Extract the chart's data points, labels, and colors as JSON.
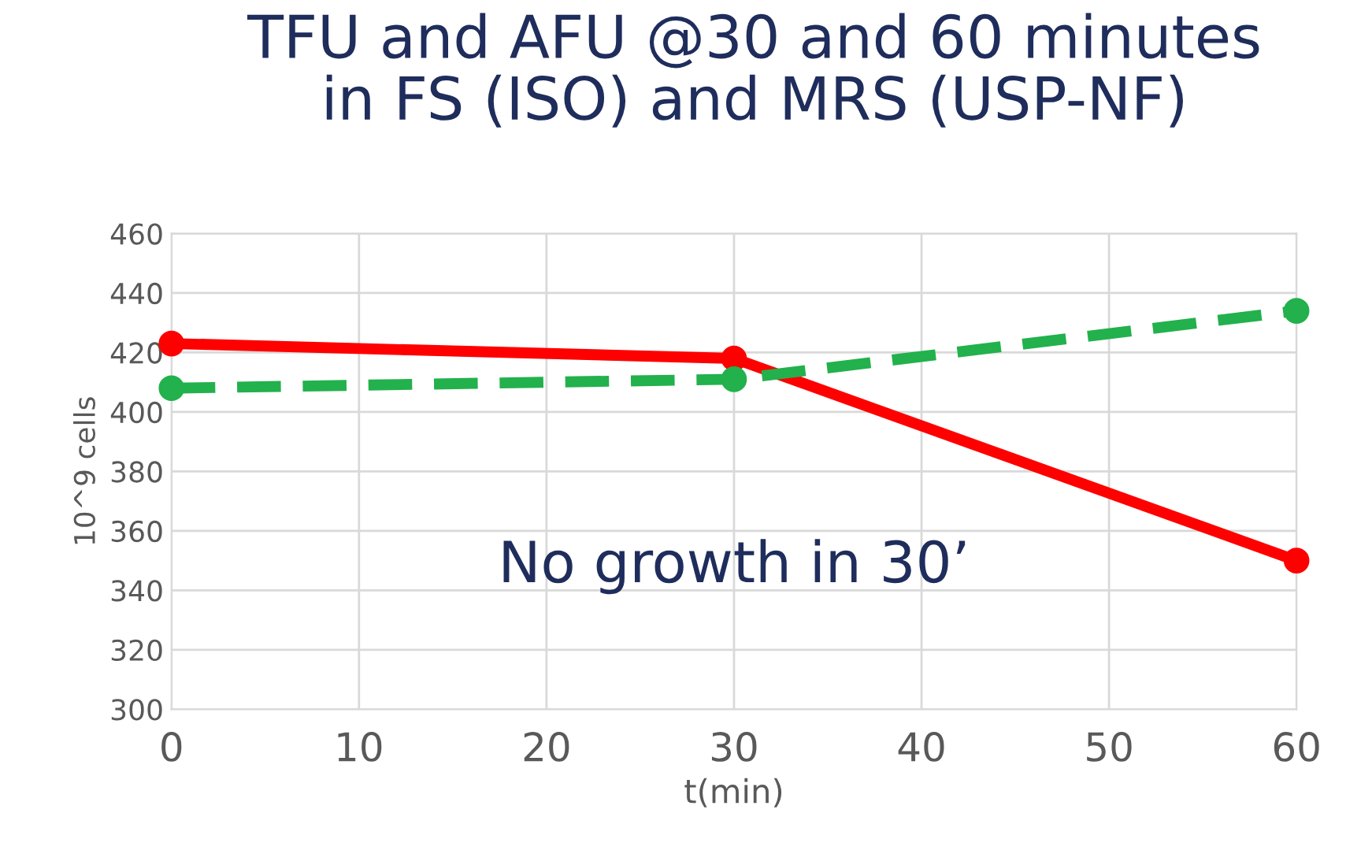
{
  "chart_data": {
    "type": "line",
    "title": "TFU and AFU @30 and 60 minutes\nin FS (ISO) and MRS (USP-NF)",
    "xlabel": "t(min)",
    "ylabel": "10^9 cells",
    "x": [
      0,
      30,
      60
    ],
    "series": [
      {
        "color": "#ff0000",
        "values": [
          423,
          418,
          350
        ],
        "line_style": "solid"
      },
      {
        "color": "#22b14c",
        "values": [
          408,
          411,
          434
        ],
        "line_style": "dashed"
      }
    ],
    "xlim": [
      0,
      60
    ],
    "xticks": [
      0,
      10,
      20,
      30,
      40,
      50,
      60
    ],
    "ylim": [
      300,
      460
    ],
    "yticks": [
      300,
      320,
      340,
      360,
      380,
      400,
      420,
      440,
      460
    ],
    "grid": true,
    "marker": "circle",
    "annotations": [
      "No growth in 30’"
    ]
  }
}
